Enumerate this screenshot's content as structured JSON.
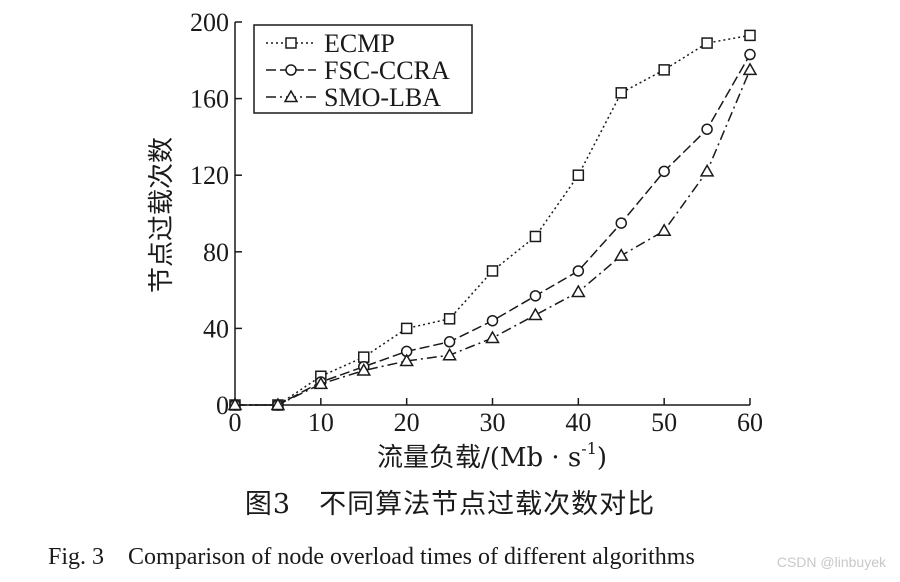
{
  "chart_data": {
    "type": "line",
    "x": [
      0,
      5,
      10,
      15,
      20,
      25,
      30,
      35,
      40,
      45,
      50,
      55,
      60
    ],
    "series": [
      {
        "name": "ECMP",
        "marker": "square",
        "dash": "dotted",
        "values": [
          0,
          0,
          15,
          25,
          40,
          45,
          70,
          88,
          120,
          163,
          175,
          189,
          193
        ]
      },
      {
        "name": "FSC-CCRA",
        "marker": "circle",
        "dash": "dashed",
        "values": [
          0,
          0,
          12,
          20,
          28,
          33,
          44,
          57,
          70,
          95,
          122,
          144,
          183
        ]
      },
      {
        "name": "SMO-LBA",
        "marker": "triangle",
        "dash": "dashdot",
        "values": [
          0,
          0,
          11,
          18,
          23,
          26,
          35,
          47,
          59,
          78,
          91,
          122,
          175
        ]
      }
    ],
    "xlim": [
      0,
      60
    ],
    "ylim": [
      0,
      200
    ],
    "xticks": [
      0,
      10,
      20,
      30,
      40,
      50,
      60
    ],
    "yticks": [
      0,
      40,
      80,
      120,
      160,
      200
    ],
    "xlabel": "流量负载/(Mb · s",
    "xlabel_superscript": "-1",
    "xlabel_suffix": ")",
    "ylabel": "节点过载次数",
    "legend_position": "top-left",
    "grid": false
  },
  "caption": {
    "chinese": "图3　不同算法节点过载次数对比",
    "english": "Fig. 3　Comparison of node overload times of different algorithms"
  },
  "watermark": "CSDN @linbuyek",
  "colors": {
    "line": "#1a1a1a",
    "background": "#ffffff"
  }
}
